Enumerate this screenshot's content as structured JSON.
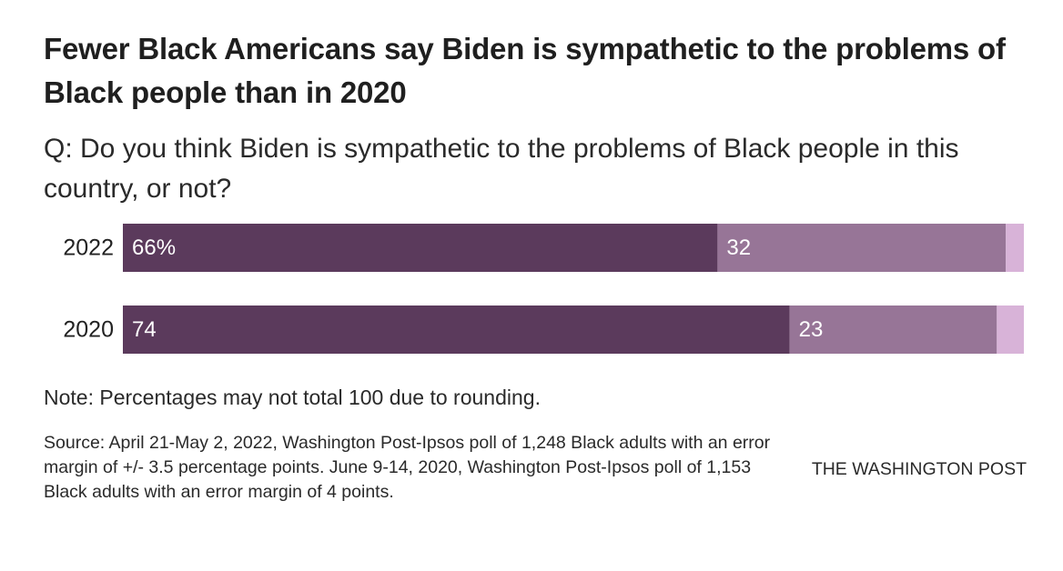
{
  "header": {
    "title": "Fewer Black Americans say Biden is sympathetic to the problems of Black people than in 2020",
    "subtitle": "Q: Do you think Biden is sympathetic to the problems of Black people in this country, or not?"
  },
  "footer": {
    "note": "Note: Percentages may not total 100 due to rounding.",
    "source": "Source: April 21-May 2, 2022, Washington Post-Ipsos poll of 1,248 Black adults with an error margin of +/- 3.5 percentage points. June 9-14, 2020, Washington Post-Ipsos poll of 1,153 Black adults with an error margin of 4 points.",
    "credit": "THE WASHINGTON POST"
  },
  "colors": {
    "segment_1": "#5b3a5c",
    "segment_2": "#977597",
    "segment_3": "#d8b3d8",
    "label_text": "#ffffff",
    "category_text": "#222222"
  },
  "chart_data": {
    "type": "bar",
    "orientation": "horizontal",
    "stacked": true,
    "categories": [
      "2022",
      "2020"
    ],
    "series": [
      {
        "values": [
          66,
          74
        ],
        "labels": [
          "66%",
          "74"
        ]
      },
      {
        "values": [
          32,
          23
        ],
        "labels": [
          "32",
          "23"
        ]
      },
      {
        "values": [
          2,
          3
        ],
        "labels": [
          "",
          ""
        ]
      }
    ],
    "title": "",
    "xlabel": "",
    "ylabel": "",
    "xlim": [
      0,
      100
    ],
    "grid": false
  }
}
